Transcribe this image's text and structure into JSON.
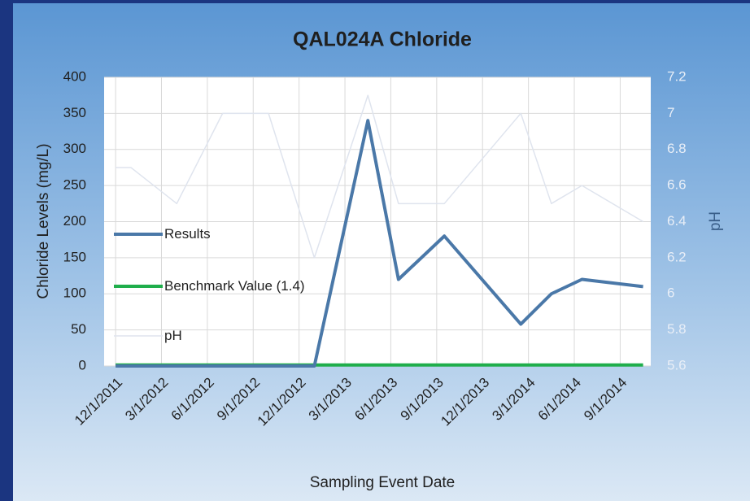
{
  "chart_data": {
    "type": "line",
    "title": "QAL024A Chloride",
    "x_label": "Sampling Event Date",
    "y_label": "Chloride Levels (mg/L)",
    "y2_label": "pH",
    "x": [
      0,
      1,
      4,
      7,
      10,
      13,
      16.5,
      18.5,
      21.5,
      26.5,
      28.5,
      30.5,
      34.5
    ],
    "xlim": [
      -0.75,
      35
    ],
    "xticks": [
      {
        "value": 0,
        "label": "12/1/2011"
      },
      {
        "value": 3,
        "label": "3/1/2012"
      },
      {
        "value": 6,
        "label": "6/1/2012"
      },
      {
        "value": 9,
        "label": "9/1/2012"
      },
      {
        "value": 12,
        "label": "12/1/2012"
      },
      {
        "value": 15,
        "label": "3/1/2013"
      },
      {
        "value": 18,
        "label": "6/1/2013"
      },
      {
        "value": 21,
        "label": "9/1/2013"
      },
      {
        "value": 24,
        "label": "12/1/2013"
      },
      {
        "value": 27,
        "label": "3/1/2014"
      },
      {
        "value": 30,
        "label": "6/1/2014"
      },
      {
        "value": 33,
        "label": "9/1/2014"
      }
    ],
    "ylim": [
      0,
      400
    ],
    "yticks": [
      0,
      50,
      100,
      150,
      200,
      250,
      300,
      350,
      400
    ],
    "y2lim": [
      5.6,
      7.2
    ],
    "y2ticks": [
      5.6,
      5.8,
      6,
      6.2,
      6.4,
      6.6,
      6.8,
      7,
      7.2
    ],
    "grid": true,
    "legend": "left",
    "series": [
      {
        "name": "Results",
        "color": "#4a78a8",
        "values": [
          0,
          0,
          0,
          0,
          0,
          0,
          340,
          120,
          180,
          58,
          100,
          120,
          110
        ]
      },
      {
        "name": "Benchmark Value (1.4)",
        "color": "#1fae4b",
        "values": [
          1.4,
          1.4,
          1.4,
          1.4,
          1.4,
          1.4,
          1.4,
          1.4,
          1.4,
          1.4,
          1.4,
          1.4,
          1.4
        ]
      },
      {
        "name": "pH",
        "color": "#dfe4ee",
        "axis": "y2",
        "values": [
          6.7,
          6.7,
          6.5,
          7.0,
          7.0,
          6.2,
          7.1,
          6.5,
          6.5,
          7.0,
          6.5,
          6.6,
          6.4
        ]
      }
    ]
  }
}
